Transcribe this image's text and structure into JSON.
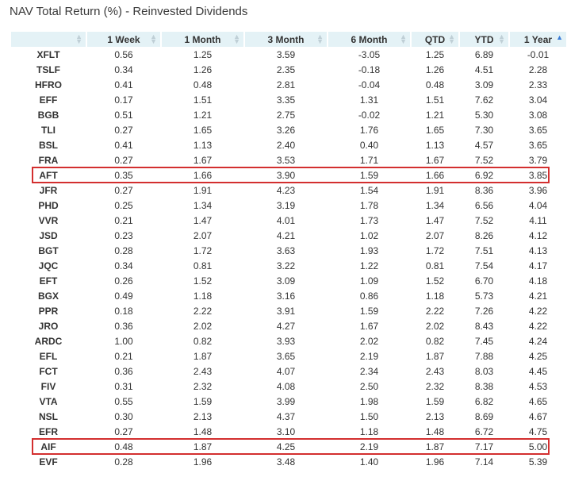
{
  "title": "NAV Total Return (%) - Reinvested Dividends",
  "columns": [
    "",
    "1 Week",
    "1 Month",
    "3 Month",
    "6 Month",
    "QTD",
    "YTD",
    "1 Year"
  ],
  "sort_active_column": "1 Year",
  "highlight_color": "#d32f2f",
  "header_bg": "#e4f2f6",
  "rows": [
    [
      "XFLT",
      "0.56",
      "1.25",
      "3.59",
      "-3.05",
      "1.25",
      "6.89",
      "-0.01"
    ],
    [
      "TSLF",
      "0.34",
      "1.26",
      "2.35",
      "-0.18",
      "1.26",
      "4.51",
      "2.28"
    ],
    [
      "HFRO",
      "0.41",
      "0.48",
      "2.81",
      "-0.04",
      "0.48",
      "3.09",
      "2.33"
    ],
    [
      "EFF",
      "0.17",
      "1.51",
      "3.35",
      "1.31",
      "1.51",
      "7.62",
      "3.04"
    ],
    [
      "BGB",
      "0.51",
      "1.21",
      "2.75",
      "-0.02",
      "1.21",
      "5.30",
      "3.08"
    ],
    [
      "TLI",
      "0.27",
      "1.65",
      "3.26",
      "1.76",
      "1.65",
      "7.30",
      "3.65"
    ],
    [
      "BSL",
      "0.41",
      "1.13",
      "2.40",
      "0.40",
      "1.13",
      "4.57",
      "3.65"
    ],
    [
      "FRA",
      "0.27",
      "1.67",
      "3.53",
      "1.71",
      "1.67",
      "7.52",
      "3.79"
    ],
    [
      "AFT",
      "0.35",
      "1.66",
      "3.90",
      "1.59",
      "1.66",
      "6.92",
      "3.85"
    ],
    [
      "JFR",
      "0.27",
      "1.91",
      "4.23",
      "1.54",
      "1.91",
      "8.36",
      "3.96"
    ],
    [
      "PHD",
      "0.25",
      "1.34",
      "3.19",
      "1.78",
      "1.34",
      "6.56",
      "4.04"
    ],
    [
      "VVR",
      "0.21",
      "1.47",
      "4.01",
      "1.73",
      "1.47",
      "7.52",
      "4.11"
    ],
    [
      "JSD",
      "0.23",
      "2.07",
      "4.21",
      "1.02",
      "2.07",
      "8.26",
      "4.12"
    ],
    [
      "BGT",
      "0.28",
      "1.72",
      "3.63",
      "1.93",
      "1.72",
      "7.51",
      "4.13"
    ],
    [
      "JQC",
      "0.34",
      "0.81",
      "3.22",
      "1.22",
      "0.81",
      "7.54",
      "4.17"
    ],
    [
      "EFT",
      "0.26",
      "1.52",
      "3.09",
      "1.09",
      "1.52",
      "6.70",
      "4.18"
    ],
    [
      "BGX",
      "0.49",
      "1.18",
      "3.16",
      "0.86",
      "1.18",
      "5.73",
      "4.21"
    ],
    [
      "PPR",
      "0.18",
      "2.22",
      "3.91",
      "1.59",
      "2.22",
      "7.26",
      "4.22"
    ],
    [
      "JRO",
      "0.36",
      "2.02",
      "4.27",
      "1.67",
      "2.02",
      "8.43",
      "4.22"
    ],
    [
      "ARDC",
      "1.00",
      "0.82",
      "3.93",
      "2.02",
      "0.82",
      "7.45",
      "4.24"
    ],
    [
      "EFL",
      "0.21",
      "1.87",
      "3.65",
      "2.19",
      "1.87",
      "7.88",
      "4.25"
    ],
    [
      "FCT",
      "0.36",
      "2.43",
      "4.07",
      "2.34",
      "2.43",
      "8.03",
      "4.45"
    ],
    [
      "FIV",
      "0.31",
      "2.32",
      "4.08",
      "2.50",
      "2.32",
      "8.38",
      "4.53"
    ],
    [
      "VTA",
      "0.55",
      "1.59",
      "3.99",
      "1.98",
      "1.59",
      "6.82",
      "4.65"
    ],
    [
      "NSL",
      "0.30",
      "2.13",
      "4.37",
      "1.50",
      "2.13",
      "8.69",
      "4.67"
    ],
    [
      "EFR",
      "0.27",
      "1.48",
      "3.10",
      "1.18",
      "1.48",
      "6.72",
      "4.75"
    ],
    [
      "AIF",
      "0.48",
      "1.87",
      "4.25",
      "2.19",
      "1.87",
      "7.17",
      "5.00"
    ],
    [
      "EVF",
      "0.28",
      "1.96",
      "3.48",
      "1.40",
      "1.96",
      "7.14",
      "5.39"
    ]
  ],
  "highlighted_rows": [
    "AFT",
    "AIF"
  ]
}
